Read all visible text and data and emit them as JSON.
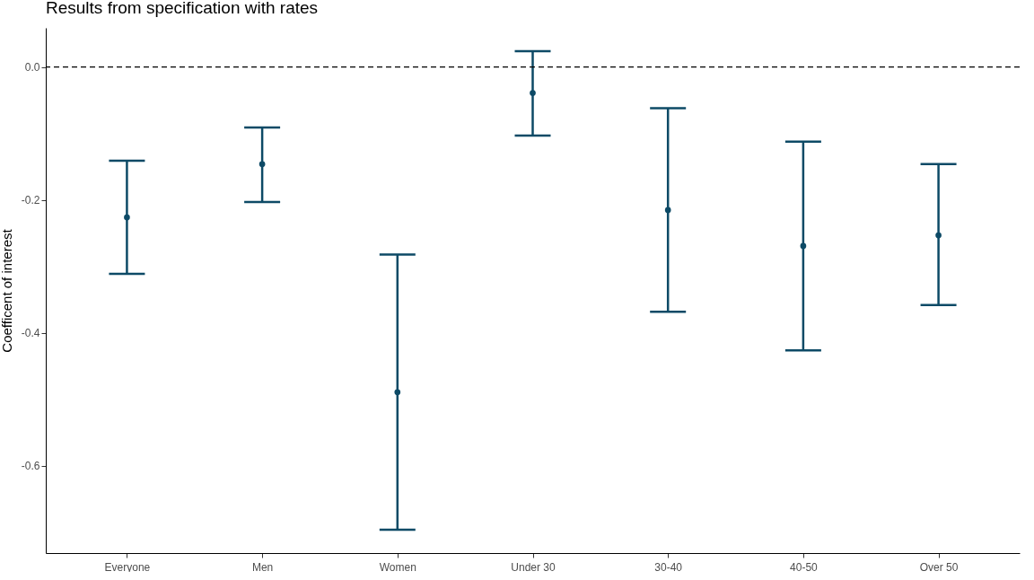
{
  "chart_data": {
    "type": "scatter",
    "title": "Results from specification with rates",
    "ylabel": "Coefficent of interest",
    "categories": [
      "Everyone",
      "Men",
      "Women",
      "Under 30",
      "30-40",
      "40-50",
      "Over 50"
    ],
    "series": [
      {
        "color": "#0d4a66",
        "values": [
          -0.226,
          -0.146,
          -0.489,
          -0.039,
          -0.215,
          -0.269,
          -0.253
        ],
        "errors": [
          [
            -0.311,
            -0.141
          ],
          [
            -0.203,
            -0.091
          ],
          [
            -0.696,
            -0.282
          ],
          [
            -0.103,
            0.024
          ],
          [
            -0.368,
            -0.062
          ],
          [
            -0.426,
            -0.112
          ],
          [
            -0.358,
            -0.146
          ]
        ]
      }
    ],
    "ylim": [
      -0.731,
      0.059
    ],
    "yticks": [
      {
        "value": 0,
        "label": "0.0"
      },
      {
        "value": -0.2,
        "label": "-0.2"
      },
      {
        "value": -0.4,
        "label": "-0.4"
      },
      {
        "value": -0.6,
        "label": "-0.6"
      }
    ],
    "ref_lines": [
      {
        "axis": "y",
        "value": 0,
        "color": "#000000",
        "line_style": "dashed"
      }
    ],
    "grid": false,
    "marker": "circle"
  }
}
